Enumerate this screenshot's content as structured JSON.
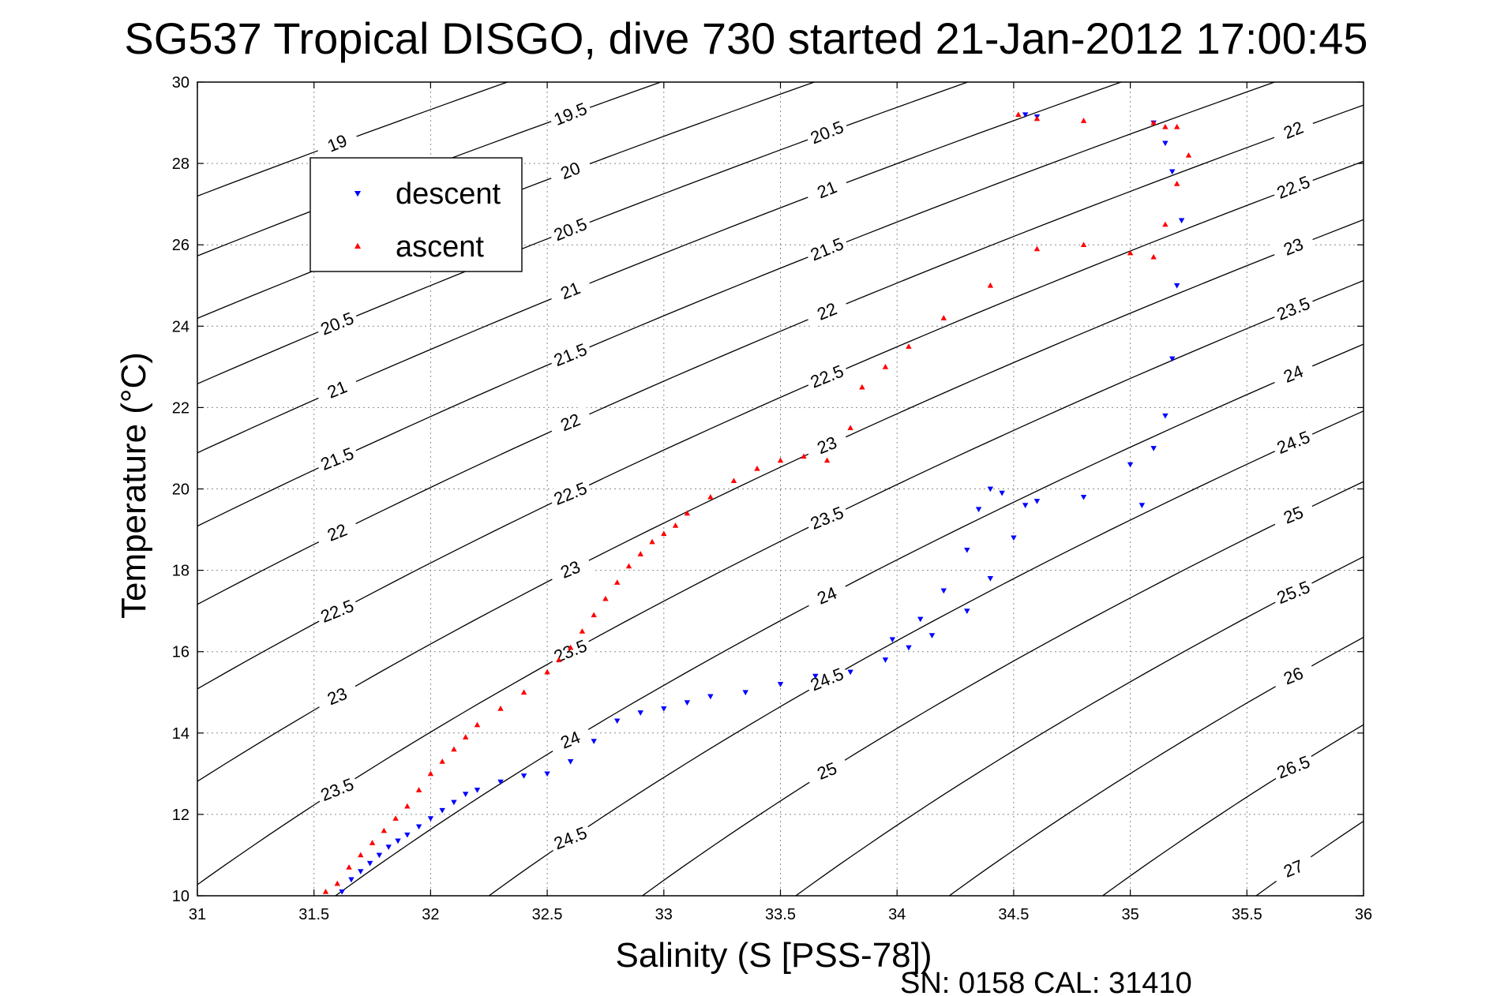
{
  "chart_data": {
    "type": "scatter",
    "title": "SG537 Tropical DISGO, dive 730 started 21-Jan-2012 17:00:45",
    "xlabel": "Salinity (S [PSS-78])",
    "ylabel": "Temperature (°C)",
    "footer": "SN: 0158  CAL: 31410",
    "xlim": [
      31,
      36
    ],
    "ylim": [
      10,
      30
    ],
    "xticks": [
      "31",
      "31.5",
      "32",
      "32.5",
      "33",
      "33.5",
      "34",
      "34.5",
      "35",
      "35.5",
      "36"
    ],
    "yticks": [
      "10",
      "12",
      "14",
      "16",
      "18",
      "20",
      "22",
      "24",
      "26",
      "28",
      "30"
    ],
    "grid": true,
    "legend": {
      "placement": "top-left",
      "entries": [
        "descent",
        "ascent"
      ]
    },
    "density_contours": [
      "19",
      "19.5",
      "20",
      "20.5",
      "21",
      "21.5",
      "22",
      "22.5",
      "23",
      "23.5",
      "24",
      "24.5",
      "25",
      "25.5",
      "26",
      "26.5",
      "27"
    ],
    "series": [
      {
        "name": "descent",
        "color": "#0000ff",
        "marker": "triangle-down",
        "x": [
          31.62,
          31.66,
          31.7,
          31.74,
          31.78,
          31.82,
          31.86,
          31.9,
          31.95,
          32.0,
          32.05,
          32.1,
          32.15,
          32.2,
          32.3,
          32.4,
          32.5,
          32.6,
          32.7,
          32.8,
          32.9,
          33.0,
          33.1,
          33.2,
          33.35,
          33.5,
          33.65,
          33.8,
          33.95,
          34.05,
          34.15,
          34.3,
          34.4,
          34.5,
          34.55,
          34.45,
          34.4,
          34.35,
          34.3,
          34.2,
          34.1,
          33.98,
          34.6,
          34.8,
          35.0,
          35.05,
          35.1,
          35.15,
          35.18,
          35.2,
          35.22,
          35.18,
          35.15,
          35.1,
          34.55,
          34.6
        ],
        "y": [
          10.1,
          10.4,
          10.6,
          10.8,
          11.0,
          11.2,
          11.35,
          11.5,
          11.7,
          11.9,
          12.1,
          12.3,
          12.5,
          12.6,
          12.8,
          12.95,
          13.0,
          13.3,
          13.8,
          14.3,
          14.5,
          14.6,
          14.75,
          14.9,
          15.0,
          15.2,
          15.4,
          15.5,
          15.8,
          16.1,
          16.4,
          17.0,
          17.8,
          18.8,
          19.6,
          19.9,
          20.0,
          19.5,
          18.5,
          17.5,
          16.8,
          16.3,
          19.7,
          19.8,
          20.6,
          19.6,
          21.0,
          21.8,
          23.2,
          25.0,
          26.6,
          27.8,
          28.5,
          29.0,
          29.2,
          29.15
        ]
      },
      {
        "name": "ascent",
        "color": "#ff0000",
        "marker": "triangle-up",
        "x": [
          31.55,
          31.6,
          31.65,
          31.7,
          31.75,
          31.8,
          31.85,
          31.9,
          31.95,
          32.0,
          32.05,
          32.1,
          32.15,
          32.2,
          32.3,
          32.4,
          32.5,
          32.55,
          32.6,
          32.65,
          32.7,
          32.75,
          32.8,
          32.85,
          32.9,
          32.95,
          33.0,
          33.05,
          33.1,
          33.2,
          33.3,
          33.4,
          33.5,
          33.6,
          33.7,
          33.8,
          33.85,
          33.95,
          34.05,
          34.2,
          34.4,
          34.6,
          34.8,
          35.0,
          35.1,
          35.15,
          35.2,
          35.25,
          35.15,
          35.1,
          35.2,
          34.8,
          34.6,
          34.52
        ],
        "y": [
          10.1,
          10.3,
          10.7,
          11.0,
          11.3,
          11.6,
          11.9,
          12.2,
          12.6,
          13.0,
          13.3,
          13.6,
          13.9,
          14.2,
          14.6,
          15.0,
          15.5,
          15.8,
          16.1,
          16.5,
          16.9,
          17.3,
          17.7,
          18.1,
          18.4,
          18.7,
          18.9,
          19.1,
          19.4,
          19.8,
          20.2,
          20.5,
          20.7,
          20.8,
          20.7,
          21.5,
          22.5,
          23.0,
          23.5,
          24.2,
          25.0,
          25.9,
          26.0,
          25.8,
          25.7,
          26.5,
          27.5,
          28.2,
          28.9,
          29.0,
          28.9,
          29.05,
          29.1,
          29.2
        ]
      }
    ]
  }
}
